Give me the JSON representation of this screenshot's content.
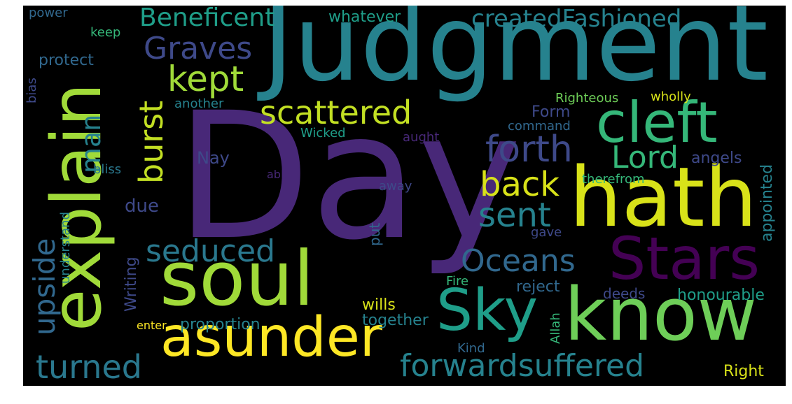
{
  "palette": {
    "yellow": "#fde725",
    "lime": "#a0da39",
    "lightgreen": "#6ece58",
    "green": "#35b779",
    "teal": "#1f9e89",
    "tealblue": "#26828e",
    "blue": "#31688e",
    "slate": "#3e4989",
    "purple": "#482878",
    "deeppurple": "#440154"
  },
  "words": [
    {
      "text": "Judgment",
      "color": "#26828e"
    },
    {
      "text": "Day",
      "color": "#482878"
    },
    {
      "text": "explain",
      "color": "#a0da39"
    },
    {
      "text": "hath",
      "color": "#d8e219"
    },
    {
      "text": "soul",
      "color": "#a0da39"
    },
    {
      "text": "know",
      "color": "#6ece58"
    },
    {
      "text": "Stars",
      "color": "#440154"
    },
    {
      "text": "Sky",
      "color": "#1f9e89"
    },
    {
      "text": "asunder",
      "color": "#fde725"
    },
    {
      "text": "cleft",
      "color": "#35b779"
    },
    {
      "text": "Graves",
      "color": "#3e4989"
    },
    {
      "text": "kept",
      "color": "#a0da39"
    },
    {
      "text": "scattered",
      "color": "#c2df23"
    },
    {
      "text": "forth",
      "color": "#3e4989"
    },
    {
      "text": "Beneficent",
      "color": "#1f9e89"
    },
    {
      "text": "createdFashioned",
      "color": "#26828e"
    },
    {
      "text": "whatever",
      "color": "#1f9e89"
    },
    {
      "text": "burst",
      "color": "#c2df23"
    },
    {
      "text": "man",
      "color": "#26828e"
    },
    {
      "text": "Lord",
      "color": "#35b779"
    },
    {
      "text": "back",
      "color": "#d8e219"
    },
    {
      "text": "sent",
      "color": "#26828e"
    },
    {
      "text": "Oceans",
      "color": "#31688e"
    },
    {
      "text": "seduced",
      "color": "#2a788e"
    },
    {
      "text": "upside",
      "color": "#31688e"
    },
    {
      "text": "turned",
      "color": "#2a788e"
    },
    {
      "text": "forwardsuffered",
      "color": "#26828e"
    },
    {
      "text": "due",
      "color": "#3e4989"
    },
    {
      "text": "power",
      "color": "#31688e"
    },
    {
      "text": "keep",
      "color": "#35b779"
    },
    {
      "text": "protect",
      "color": "#31688e"
    },
    {
      "text": "bias",
      "color": "#3e4989"
    },
    {
      "text": "another",
      "color": "#26828e"
    },
    {
      "text": "Righteous",
      "color": "#6ece58"
    },
    {
      "text": "wholly",
      "color": "#d8e219"
    },
    {
      "text": "Form",
      "color": "#3e4989"
    },
    {
      "text": "command",
      "color": "#31688e"
    },
    {
      "text": "Wicked",
      "color": "#1f9e89"
    },
    {
      "text": "aught",
      "color": "#482878"
    },
    {
      "text": "Nay",
      "color": "#3e4989"
    },
    {
      "text": "bliss",
      "color": "#2a788e"
    },
    {
      "text": "able",
      "color": "#482878"
    },
    {
      "text": "away",
      "color": "#3e4989"
    },
    {
      "text": "angels",
      "color": "#3e4989"
    },
    {
      "text": "therefrom",
      "color": "#35b779"
    },
    {
      "text": "appointed",
      "color": "#26828e"
    },
    {
      "text": "put",
      "color": "#31688e"
    },
    {
      "text": "gave",
      "color": "#3e4989"
    },
    {
      "text": "understand",
      "color": "#26828e"
    },
    {
      "text": "Writing",
      "color": "#3e4989"
    },
    {
      "text": "reject",
      "color": "#31688e"
    },
    {
      "text": "deeds",
      "color": "#3e4989"
    },
    {
      "text": "honourable",
      "color": "#1f9e89"
    },
    {
      "text": "Fire",
      "color": "#35b779"
    },
    {
      "text": "wills",
      "color": "#d8e219"
    },
    {
      "text": "together",
      "color": "#26828e"
    },
    {
      "text": "enter",
      "color": "#fde725"
    },
    {
      "text": "proportion",
      "color": "#26828e"
    },
    {
      "text": "Allah",
      "color": "#35b779"
    },
    {
      "text": "Kind",
      "color": "#31688e"
    },
    {
      "text": "Right",
      "color": "#d8e219"
    }
  ]
}
